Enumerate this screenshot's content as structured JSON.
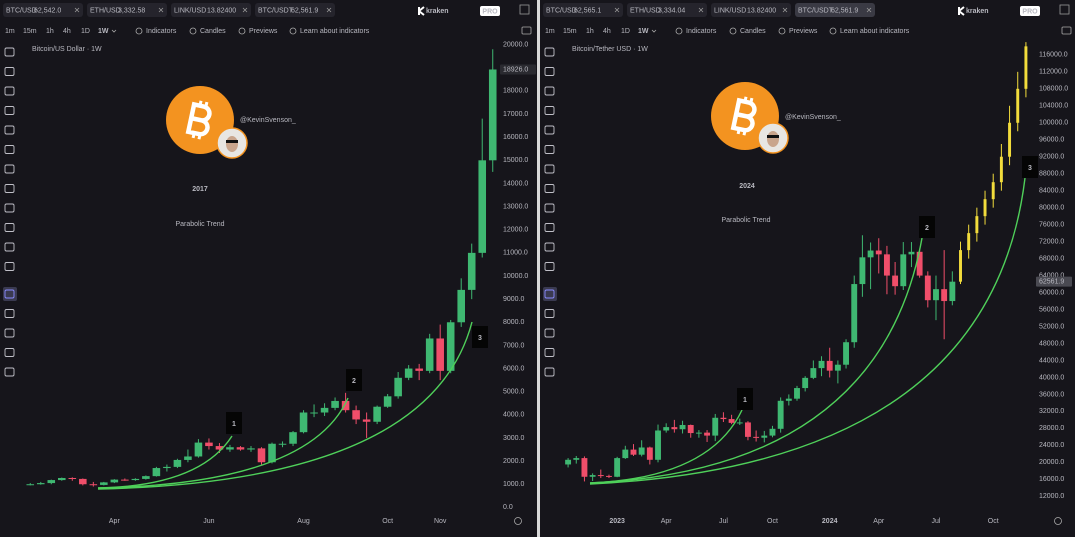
{
  "panels": [
    {
      "tabs": [
        {
          "symbol": "BTC/USD",
          "price": "62,542.0"
        },
        {
          "symbol": "ETH/USD",
          "price": "3,332.58"
        },
        {
          "symbol": "LINK/USD",
          "price": "13.82400"
        },
        {
          "symbol": "BTC/USDT",
          "price": "62,561.9"
        }
      ],
      "logo": "kraken",
      "logo_badge": "PRO",
      "intervals": [
        "1m",
        "15m",
        "1h",
        "4h",
        "1D",
        "1W"
      ],
      "toolbar": [
        "Indicators",
        "Candles",
        "Previews",
        "Learn about indicators"
      ]
    },
    {
      "tabs": [
        {
          "symbol": "BTC/USD",
          "price": "62,565.1"
        },
        {
          "symbol": "ETH/USD",
          "price": "3,334.04"
        },
        {
          "symbol": "LINK/USD",
          "price": "13.82400"
        },
        {
          "symbol": "BTC/USDT",
          "price": "62,561.9"
        }
      ],
      "logo": "kraken",
      "logo_badge": "PRO",
      "intervals": [
        "1m",
        "15m",
        "1h",
        "4h",
        "1D",
        "1W"
      ],
      "toolbar": [
        "Indicators",
        "Candles",
        "Previews",
        "Learn about indicators"
      ]
    }
  ],
  "chart_data": [
    {
      "type": "candlestick",
      "title": "Bitcoin/US Dollar · 1W",
      "overlay_handle": "@KevinSvenson_",
      "overlay_year": "2017",
      "overlay_subtitle": "Parabolic Trend",
      "markers": [
        "1",
        "2",
        "3"
      ],
      "last_price": {
        "value": 18926,
        "label": "18926.0"
      },
      "categories": [
        null,
        null,
        null,
        null,
        null,
        null,
        null,
        null,
        "Apr",
        null,
        null,
        null,
        null,
        null,
        null,
        null,
        null,
        "Jun",
        null,
        null,
        null,
        null,
        null,
        null,
        null,
        null,
        "Aug",
        null,
        null,
        null,
        null,
        null,
        null,
        null,
        "Oct",
        null,
        null,
        null,
        null,
        "Nov",
        null,
        null,
        null,
        null,
        null
      ],
      "series": [
        {
          "color_up": "#3fb872",
          "color_down": "#f04e6a",
          "open": [
            980,
            1000,
            1050,
            1180,
            1270,
            1230,
            1000,
            970,
            1080,
            1200,
            1180,
            1230,
            1350,
            1700,
            1750,
            2050,
            2200,
            2800,
            2650,
            2500,
            2600,
            2500,
            2550,
            1950,
            2750,
            2750,
            3250,
            4100,
            4100,
            4300,
            4600,
            4200,
            3800,
            3700,
            4350,
            4800,
            5600,
            6000,
            5900,
            7300,
            5900,
            8000,
            9400,
            11000,
            15000
          ],
          "high": [
            1050,
            1100,
            1200,
            1290,
            1300,
            1250,
            1100,
            1100,
            1220,
            1250,
            1260,
            1380,
            1750,
            1850,
            2100,
            2500,
            2950,
            2980,
            2780,
            2700,
            2650,
            2650,
            2600,
            2800,
            2850,
            3300,
            4200,
            4450,
            4500,
            4750,
            4950,
            4400,
            4100,
            4400,
            4900,
            5850,
            6150,
            6200,
            7500,
            7900,
            8100,
            9900,
            11400,
            16800,
            19800
          ],
          "low": [
            950,
            980,
            1000,
            1150,
            1150,
            950,
            900,
            950,
            1050,
            1150,
            1150,
            1200,
            1330,
            1550,
            1700,
            1950,
            2150,
            2500,
            2350,
            2400,
            2450,
            2400,
            1850,
            1900,
            2600,
            2650,
            3200,
            3900,
            3950,
            4200,
            4100,
            3600,
            3000,
            3600,
            4300,
            4700,
            5500,
            5500,
            5800,
            5500,
            5800,
            7800,
            9000,
            10800,
            14500
          ],
          "close": [
            1000,
            1050,
            1180,
            1270,
            1230,
            1000,
            970,
            1080,
            1200,
            1180,
            1230,
            1350,
            1700,
            1750,
            2050,
            2200,
            2800,
            2650,
            2500,
            2600,
            2500,
            2550,
            1950,
            2750,
            2750,
            3250,
            4100,
            4100,
            4300,
            4600,
            4200,
            3800,
            3700,
            4350,
            4800,
            5600,
            6000,
            5900,
            7300,
            5900,
            8000,
            9400,
            11000,
            15000,
            18926
          ]
        }
      ],
      "ylim": [
        -200,
        20200
      ],
      "yticks": [
        {
          "value": 0,
          "label": "0.0"
        },
        {
          "value": 1000,
          "label": "1000.0"
        },
        {
          "value": 2000,
          "label": "2000.0"
        },
        {
          "value": 3000,
          "label": "3000.0"
        },
        {
          "value": 4000,
          "label": "4000.0"
        },
        {
          "value": 5000,
          "label": "5000.0"
        },
        {
          "value": 6000,
          "label": "6000.0"
        },
        {
          "value": 7000,
          "label": "7000.0"
        },
        {
          "value": 8000,
          "label": "8000.0"
        },
        {
          "value": 9000,
          "label": "9000.0"
        },
        {
          "value": 10000,
          "label": "10000.0"
        },
        {
          "value": 11000,
          "label": "11000.0"
        },
        {
          "value": 12000,
          "label": "12000.0"
        },
        {
          "value": 13000,
          "label": "13000.0"
        },
        {
          "value": 14000,
          "label": "14000.0"
        },
        {
          "value": 15000,
          "label": "15000.0"
        },
        {
          "value": 16000,
          "label": "16000.0"
        },
        {
          "value": 17000,
          "label": "17000.0"
        },
        {
          "value": 18000,
          "label": "18000.0"
        },
        {
          "value": 19000,
          "label": "19000.0"
        },
        {
          "value": 20000,
          "label": "20000.0"
        }
      ]
    },
    {
      "type": "candlestick",
      "title": "Bitcoin/Tether USD · 1W",
      "overlay_handle": "@KevinSvenson_",
      "overlay_year": "2024",
      "overlay_subtitle": "Parabolic Trend",
      "markers": [
        "1",
        "2",
        "3"
      ],
      "last_price": 62561.9,
      "categories": [
        null,
        null,
        null,
        null,
        null,
        null,
        "2023",
        null,
        null,
        null,
        null,
        null,
        "Apr",
        null,
        null,
        null,
        null,
        null,
        null,
        "Jul",
        null,
        null,
        null,
        null,
        null,
        "Oct",
        null,
        null,
        null,
        null,
        null,
        null,
        "2024",
        null,
        null,
        null,
        null,
        null,
        "Apr",
        null,
        null,
        null,
        null,
        null,
        null,
        "Jul",
        null,
        null,
        null,
        null,
        null,
        null,
        "Oct",
        null,
        null,
        null,
        null
      ],
      "series": [
        {
          "color_up": "#3fb872",
          "color_down": "#f04e6a",
          "open": [
            19500,
            20600,
            21000,
            16600,
            17000,
            16800,
            16600,
            21000,
            23000,
            21800,
            23500,
            20600,
            27500,
            28300,
            27800,
            28800,
            26900,
            27000,
            26300,
            30500,
            30200,
            29300,
            29400,
            26000,
            25800,
            26300,
            27900,
            34500,
            35000,
            37500,
            39900,
            42200,
            43900,
            41600,
            43000,
            48300,
            62000,
            68300,
            69900,
            69000,
            64000,
            61500,
            69000,
            69600,
            64000,
            58200,
            60800,
            58000,
            null,
            null,
            null,
            null,
            null,
            null,
            null,
            null,
            null
          ],
          "high": [
            21000,
            21500,
            21400,
            17400,
            18300,
            17100,
            21300,
            23900,
            24300,
            25200,
            23700,
            28900,
            29200,
            30000,
            29800,
            28900,
            27600,
            27600,
            31400,
            31800,
            31200,
            30300,
            29700,
            27500,
            27400,
            28600,
            35300,
            36000,
            38000,
            40300,
            44000,
            45000,
            47000,
            44000,
            49000,
            64000,
            73500,
            71800,
            72800,
            71000,
            67200,
            71900,
            71900,
            70000,
            65000,
            64000,
            70000,
            65000,
            null,
            null,
            null,
            null,
            null,
            null,
            null,
            null,
            null
          ],
          "low": [
            18800,
            19700,
            15500,
            15600,
            16300,
            16300,
            16500,
            20800,
            21500,
            21400,
            19500,
            20000,
            27000,
            27000,
            26800,
            25800,
            25800,
            24800,
            25000,
            29500,
            29000,
            28800,
            25200,
            24900,
            24700,
            25900,
            27000,
            33400,
            34500,
            36700,
            39600,
            40300,
            40000,
            38600,
            42100,
            47000,
            59000,
            60800,
            64500,
            59600,
            59500,
            60600,
            66000,
            63500,
            56500,
            53500,
            49000,
            57000,
            null,
            null,
            null,
            null,
            null,
            null,
            null,
            null,
            null
          ],
          "close": [
            20600,
            21000,
            16600,
            17000,
            16800,
            16600,
            21000,
            23000,
            21800,
            23500,
            20600,
            27500,
            28300,
            27800,
            28800,
            26900,
            27000,
            26300,
            30500,
            30200,
            29300,
            29400,
            26000,
            25800,
            26300,
            27900,
            34500,
            35000,
            37500,
            39900,
            42200,
            43900,
            41600,
            43000,
            48300,
            62000,
            68300,
            69900,
            69000,
            64000,
            61500,
            69000,
            69600,
            64000,
            58200,
            60800,
            58000,
            62561.9,
            null,
            null,
            null,
            null,
            null,
            null,
            null,
            null,
            null
          ]
        },
        {
          "color": "#f2dc3c",
          "open": [
            null,
            null,
            null,
            null,
            null,
            null,
            null,
            null,
            null,
            null,
            null,
            null,
            null,
            null,
            null,
            null,
            null,
            null,
            null,
            null,
            null,
            null,
            null,
            null,
            null,
            null,
            null,
            null,
            null,
            null,
            null,
            null,
            null,
            null,
            null,
            null,
            null,
            null,
            null,
            null,
            null,
            null,
            null,
            null,
            null,
            null,
            null,
            null,
            62561.9,
            70000,
            74000,
            78000,
            82000,
            86000,
            92000,
            100000,
            108000
          ],
          "high": [
            null,
            null,
            null,
            null,
            null,
            null,
            null,
            null,
            null,
            null,
            null,
            null,
            null,
            null,
            null,
            null,
            null,
            null,
            null,
            null,
            null,
            null,
            null,
            null,
            null,
            null,
            null,
            null,
            null,
            null,
            null,
            null,
            null,
            null,
            null,
            null,
            null,
            null,
            null,
            null,
            null,
            null,
            null,
            null,
            null,
            null,
            null,
            null,
            72000,
            76000,
            80000,
            84000,
            88000,
            95000,
            104000,
            112000,
            119000
          ],
          "low": [
            null,
            null,
            null,
            null,
            null,
            null,
            null,
            null,
            null,
            null,
            null,
            null,
            null,
            null,
            null,
            null,
            null,
            null,
            null,
            null,
            null,
            null,
            null,
            null,
            null,
            null,
            null,
            null,
            null,
            null,
            null,
            null,
            null,
            null,
            null,
            null,
            null,
            null,
            null,
            null,
            null,
            null,
            null,
            null,
            null,
            null,
            null,
            null,
            62000,
            68000,
            72000,
            76000,
            80000,
            84000,
            90000,
            98000,
            106000
          ],
          "close": [
            null,
            null,
            null,
            null,
            null,
            null,
            null,
            null,
            null,
            null,
            null,
            null,
            null,
            null,
            null,
            null,
            null,
            null,
            null,
            null,
            null,
            null,
            null,
            null,
            null,
            null,
            null,
            null,
            null,
            null,
            null,
            null,
            null,
            null,
            null,
            null,
            null,
            null,
            null,
            null,
            null,
            null,
            null,
            null,
            null,
            null,
            null,
            null,
            70000,
            74000,
            78000,
            82000,
            86000,
            92000,
            100000,
            108000,
            118000
          ]
        }
      ],
      "ylim": [
        8300,
        119500
      ],
      "yticks": [
        {
          "value": 12000,
          "label": "12000.0"
        },
        {
          "value": 16000,
          "label": "16000.0"
        },
        {
          "value": 20000,
          "label": "20000.0"
        },
        {
          "value": 24000,
          "label": "24000.0"
        },
        {
          "value": 28000,
          "label": "28000.0"
        },
        {
          "value": 32000,
          "label": "32000.0"
        },
        {
          "value": 36000,
          "label": "36000.0"
        },
        {
          "value": 40000,
          "label": "40000.0"
        },
        {
          "value": 44000,
          "label": "44000.0"
        },
        {
          "value": 48000,
          "label": "48000.0"
        },
        {
          "value": 52000,
          "label": "52000.0"
        },
        {
          "value": 56000,
          "label": "56000.0"
        },
        {
          "value": 60000,
          "label": "60000.0"
        },
        {
          "value": 64000,
          "label": "64000.0"
        },
        {
          "value": 68000,
          "label": "68000.0"
        },
        {
          "value": 72000,
          "label": "72000.0"
        },
        {
          "value": 76000,
          "label": "76000.0"
        },
        {
          "value": 80000,
          "label": "80000.0"
        },
        {
          "value": 84000,
          "label": "84000.0"
        },
        {
          "value": 88000,
          "label": "88000.0"
        },
        {
          "value": 92000,
          "label": "92000.0"
        },
        {
          "value": 96000,
          "label": "96000.0"
        },
        {
          "value": 100000,
          "label": "100000.0"
        },
        {
          "value": 104000,
          "label": "104000.0"
        },
        {
          "value": 108000,
          "label": "108000.0"
        },
        {
          "value": 112000,
          "label": "112000.0"
        },
        {
          "value": 116000,
          "label": "116000.0"
        }
      ]
    }
  ]
}
